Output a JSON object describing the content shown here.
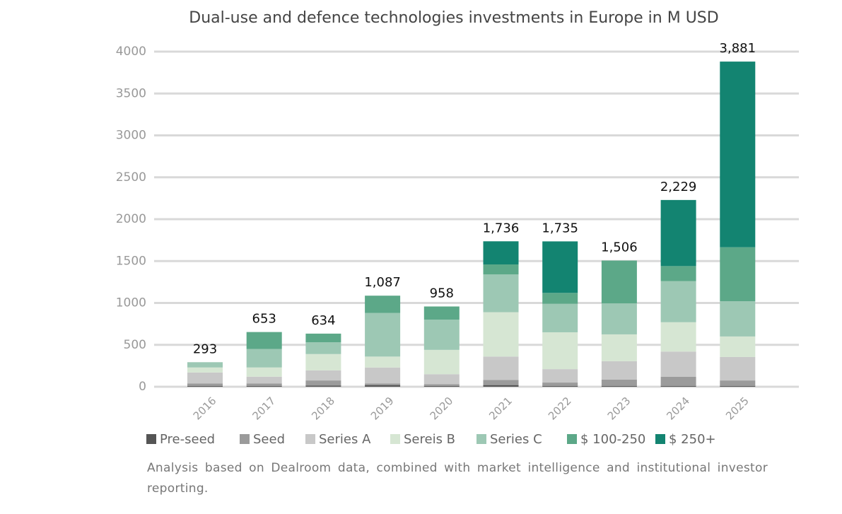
{
  "chart_data": {
    "type": "stacked_bar",
    "title": "Dual-use and defence technologies investments in Europe in M USD",
    "categories": [
      "2016",
      "2017",
      "2018",
      "2019",
      "2020",
      "2021",
      "2022",
      "2023",
      "2024",
      "2025"
    ],
    "series": [
      {
        "name": "Pre-seed",
        "color": "#555555",
        "values": [
          10,
          10,
          15,
          20,
          10,
          20,
          10,
          10,
          10,
          10
        ]
      },
      {
        "name": "Seed",
        "color": "#9b9b9b",
        "values": [
          30,
          30,
          60,
          20,
          20,
          60,
          40,
          75,
          110,
          65
        ]
      },
      {
        "name": "Series A",
        "color": "#c8c8c8",
        "values": [
          130,
          80,
          120,
          190,
          120,
          280,
          160,
          220,
          300,
          280
        ]
      },
      {
        "name": "Sereis B",
        "color": "#d6e6d3",
        "values": [
          60,
          110,
          195,
          130,
          290,
          530,
          440,
          320,
          350,
          245
        ]
      },
      {
        "name": "Series C",
        "color": "#9dc8b4",
        "values": [
          63,
          220,
          140,
          520,
          360,
          450,
          340,
          370,
          490,
          420
        ]
      },
      {
        "name": "$ 100-250",
        "color": "#5ca888",
        "values": [
          0,
          203,
          104,
          207,
          158,
          120,
          130,
          511,
          180,
          645
        ]
      },
      {
        "name": "$ 250+",
        "color": "#138471",
        "values": [
          0,
          0,
          0,
          0,
          0,
          276,
          615,
          0,
          789,
          2216
        ]
      }
    ],
    "totals": [
      293,
      653,
      634,
      1087,
      958,
      1736,
      1735,
      1506,
      2229,
      3881
    ],
    "total_labels": [
      "293",
      "653",
      "634",
      "1,087",
      "958",
      "1,736",
      "1,735",
      "1,506",
      "2,229",
      "3,881"
    ],
    "ylim": [
      0,
      4000
    ],
    "yticks": [
      0,
      500,
      1000,
      1500,
      2000,
      2500,
      3000,
      3500,
      4000
    ],
    "grid": true,
    "legend": "bottom",
    "note": "Analysis based on Dealroom data, combined with market intelligence and institutional investor reporting."
  }
}
